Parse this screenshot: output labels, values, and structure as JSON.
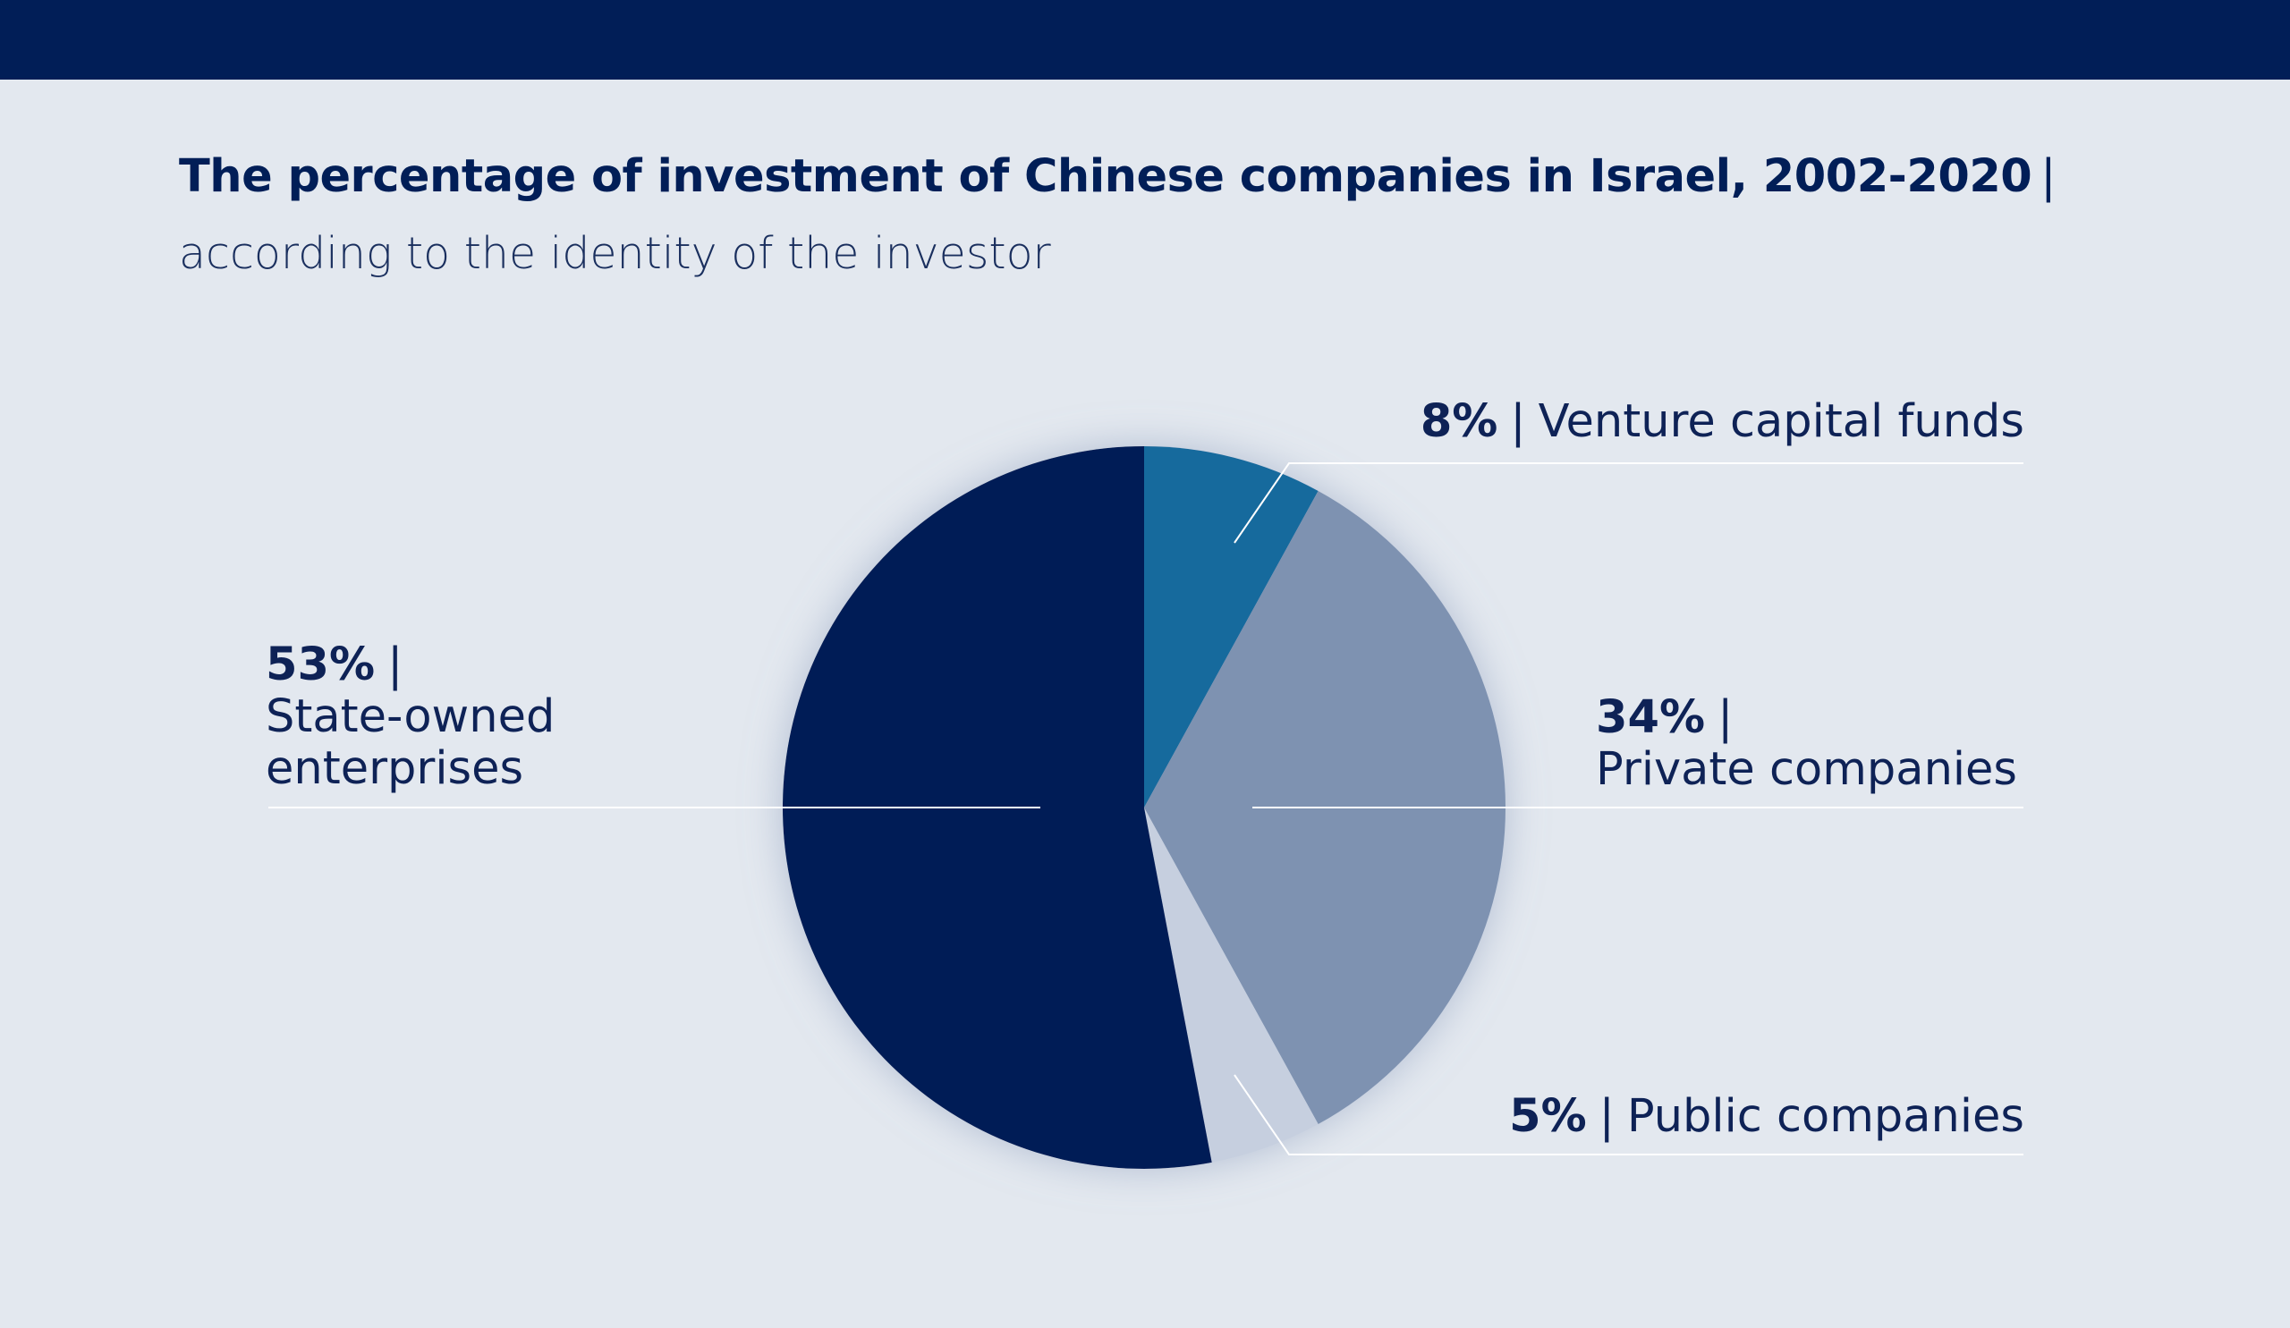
{
  "header": {
    "bar_color": "#011e57"
  },
  "chart_data": {
    "type": "pie",
    "title": "The percentage of investment of Chinese companies in Israel, 2002-2020",
    "title_separator": "|",
    "subtitle": "according to the identity of the investor",
    "label_separator": "|",
    "start_angle_deg": 0,
    "direction": "clockwise",
    "slices": [
      {
        "label": "Venture capital funds",
        "value": 8,
        "pct_label": "8%",
        "color": "#176b9d"
      },
      {
        "label": "Private companies",
        "value": 34,
        "pct_label": "34%",
        "color": "#7e92b1"
      },
      {
        "label": "Public companies",
        "value": 5,
        "pct_label": "5%",
        "color": "#c6cfdf"
      },
      {
        "label": "State-owned enterprises",
        "label_line1": "State-owned",
        "label_line2": "enterprises",
        "value": 53,
        "pct_label": "53%",
        "color": "#011e57"
      }
    ]
  }
}
